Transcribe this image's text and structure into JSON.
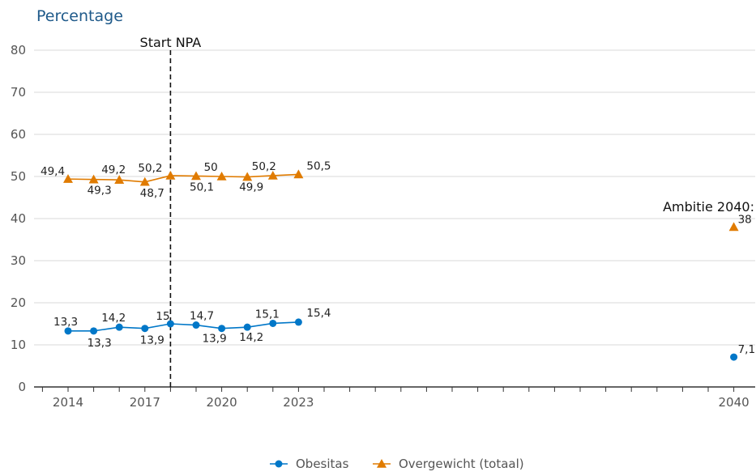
{
  "chart_data": {
    "type": "line",
    "title": "",
    "ylabel": "Percentage",
    "xlabel": "",
    "ylim": [
      0,
      80
    ],
    "yticks": [
      0,
      10,
      20,
      30,
      40,
      50,
      60,
      70,
      80
    ],
    "xticks": [
      2014,
      2017,
      2020,
      2023,
      2040
    ],
    "grid": true,
    "legend_position": "bottom",
    "series": [
      {
        "name": "Obesitas",
        "color": "#0077c8",
        "marker": "circle",
        "x": [
          2014,
          2015,
          2016,
          2017,
          2018,
          2019,
          2020,
          2021,
          2022,
          2023
        ],
        "values": [
          13.3,
          13.3,
          14.2,
          13.9,
          15,
          14.7,
          13.9,
          14.2,
          15.1,
          15.4
        ],
        "labels": [
          "13,3",
          "13,3",
          "14,2",
          "13,9",
          "15",
          "14,7",
          "13,9",
          "14,2",
          "15,1",
          "15,4"
        ],
        "target": {
          "x": 2040,
          "value": 7.1,
          "label": "7,1"
        }
      },
      {
        "name": "Overgewicht (totaal)",
        "color": "#e07b00",
        "marker": "triangle",
        "x": [
          2014,
          2015,
          2016,
          2017,
          2018,
          2019,
          2020,
          2021,
          2022,
          2023
        ],
        "values": [
          49.4,
          49.3,
          49.2,
          48.7,
          50.2,
          50.1,
          50,
          49.9,
          50.2,
          50.5
        ],
        "labels": [
          "49,4",
          "49,3",
          "49,2",
          "48,7",
          "50,2",
          "50,1",
          "50",
          "49,9",
          "50,2",
          "50,5"
        ],
        "target": {
          "x": 2040,
          "value": 38,
          "label": "38"
        }
      }
    ],
    "annotations": {
      "vline": {
        "x": 2018,
        "label": "Start NPA"
      },
      "target_label": "Ambitie 2040:"
    }
  }
}
